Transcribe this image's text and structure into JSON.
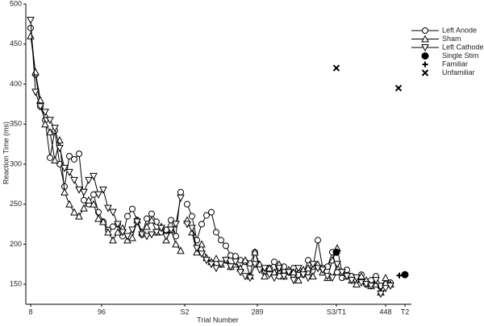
{
  "chart_data": {
    "type": "line",
    "xlabel": "Trial Number",
    "ylabel": "Reaction Time (ms)",
    "xlim": [
      2,
      480
    ],
    "ylim": [
      125,
      500
    ],
    "xticks": [
      8,
      96,
      {
        "value": 199,
        "label": "S2"
      },
      289,
      {
        "value": 387,
        "label": "S3/T1"
      },
      448,
      {
        "value": 472,
        "label": "T2"
      }
    ],
    "yticks": [
      150,
      200,
      250,
      300,
      350,
      400,
      450,
      500
    ],
    "legend": "upper right",
    "x": [
      8,
      14,
      20,
      26,
      32,
      38,
      44,
      50,
      56,
      62,
      68,
      74,
      80,
      86,
      92,
      98,
      104,
      110,
      116,
      122,
      128,
      134,
      140,
      146,
      152,
      158,
      164,
      170,
      176,
      182,
      188,
      194,
      198,
      202,
      208,
      214,
      220,
      226,
      232,
      238,
      244,
      250,
      256,
      262,
      268,
      274,
      280,
      286,
      292,
      298,
      304,
      310,
      316,
      322,
      328,
      334,
      340,
      346,
      352,
      358,
      364,
      370,
      376,
      382,
      388,
      394,
      400,
      406,
      412,
      418,
      424,
      430,
      436,
      442,
      448,
      454
    ],
    "series": [
      {
        "name": "Left Anode",
        "color": "#000000",
        "marker": "circle",
        "mode": "lines+markers",
        "values": [
          470,
          412,
          372,
          355,
          308,
          342,
          300,
          272,
          310,
          306,
          313,
          255,
          250,
          262,
          240,
          228,
          218,
          222,
          225,
          210,
          235,
          244,
          230,
          212,
          232,
          238,
          228,
          215,
          218,
          230,
          210,
          265,
          null,
          250,
          235,
          205,
          225,
          236,
          240,
          215,
          205,
          198,
          186,
          185,
          180,
          178,
          176,
          190,
          172,
          165,
          170,
          178,
          160,
          172,
          165,
          170,
          168,
          162,
          180,
          172,
          205,
          170,
          172,
          190,
          165,
          158,
          168,
          160,
          155,
          162,
          150,
          155,
          160,
          148,
          150,
          152
        ]
      },
      {
        "name": "Sham",
        "color": "#000000",
        "marker": "triangle-up",
        "mode": "lines+markers",
        "values": [
          460,
          415,
          380,
          350,
          340,
          305,
          330,
          265,
          250,
          240,
          235,
          245,
          255,
          250,
          232,
          228,
          215,
          205,
          215,
          220,
          205,
          208,
          230,
          215,
          222,
          230,
          215,
          222,
          205,
          218,
          200,
          192,
          null,
          230,
          215,
          190,
          200,
          183,
          178,
          182,
          175,
          180,
          172,
          175,
          170,
          180,
          160,
          190,
          175,
          160,
          170,
          165,
          175,
          160,
          168,
          165,
          155,
          168,
          170,
          160,
          175,
          165,
          158,
          180,
          195,
          165,
          160,
          155,
          150,
          160,
          155,
          148,
          150,
          140,
          158,
          150
        ]
      },
      {
        "name": "Left Cathode",
        "color": "#000000",
        "marker": "triangle-down",
        "mode": "lines+markers",
        "values": [
          480,
          390,
          372,
          365,
          355,
          345,
          320,
          295,
          290,
          280,
          268,
          265,
          280,
          285,
          262,
          268,
          245,
          240,
          225,
          215,
          210,
          218,
          228,
          212,
          210,
          212,
          215,
          220,
          210,
          218,
          225,
          258,
          null,
          225,
          220,
          195,
          188,
          180,
          175,
          170,
          175,
          180,
          172,
          178,
          165,
          160,
          158,
          175,
          168,
          170,
          162,
          158,
          170,
          160,
          165,
          155,
          170,
          162,
          158,
          175,
          170,
          168,
          160,
          158,
          175,
          165,
          160,
          155,
          158,
          152,
          150,
          148,
          155,
          138,
          145,
          148
        ]
      },
      {
        "name": "Single Stim",
        "color": "#000000",
        "marker": "filled-circle",
        "mode": "markers",
        "x": [
          387,
          472
        ],
        "values": [
          190,
          162
        ]
      },
      {
        "name": "Familiar",
        "color": "#000000",
        "marker": "plus",
        "mode": "markers",
        "x": [
          387,
          465
        ],
        "values": [
          190,
          161
        ]
      },
      {
        "name": "Unfamiliar",
        "color": "#000000",
        "marker": "cross",
        "mode": "markers",
        "x": [
          387,
          464
        ],
        "values": [
          420,
          395
        ]
      }
    ]
  }
}
